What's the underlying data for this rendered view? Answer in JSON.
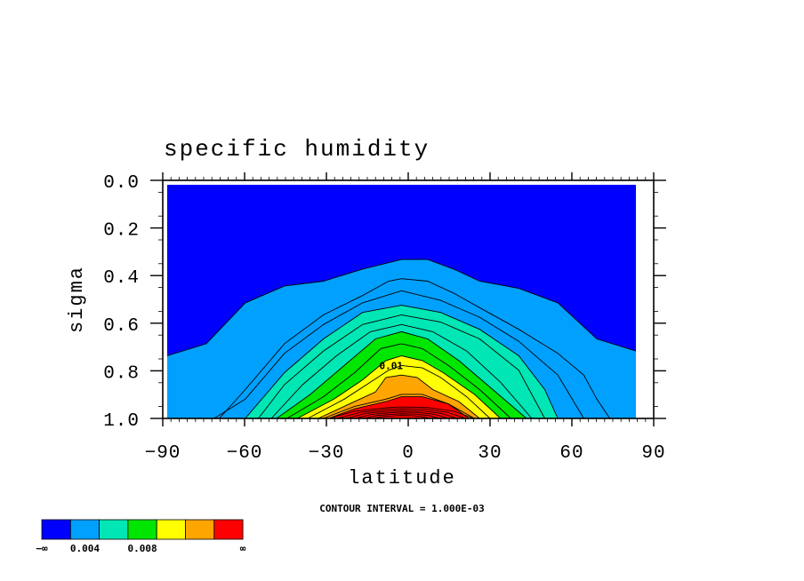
{
  "chart_data": {
    "type": "contour",
    "title": "specific humidity",
    "xlabel": "latitude",
    "ylabel": "sigma",
    "xlim": [
      -90,
      90
    ],
    "ylim": [
      1.0,
      0.0
    ],
    "x_ticks": [
      -90,
      -60,
      -30,
      0,
      30,
      60,
      90
    ],
    "x_tick_labels": [
      "−90",
      "−60",
      "−30",
      "0",
      "30",
      "60",
      "90"
    ],
    "y_ticks": [
      0.0,
      0.2,
      0.4,
      0.6,
      0.8,
      1.0
    ],
    "y_tick_labels": [
      "0.0",
      "0.2",
      "0.4",
      "0.6",
      "0.8",
      "1.0"
    ],
    "contour_note": "CONTOUR INTERVAL = 1.000E-03",
    "contour_label": "0.01",
    "colorbar": {
      "colors": [
        "#0000ff",
        "#00a0ff",
        "#00e6b4",
        "#00e600",
        "#ffff00",
        "#ffa500",
        "#ff0000"
      ],
      "labels": [
        "−∞",
        "0.004",
        "0.008",
        "∞"
      ]
    },
    "levels": [
      {
        "value": 0.002,
        "fill": "#00a0ff",
        "points": [
          [
            -90,
            0.74
          ],
          [
            -75,
            0.69
          ],
          [
            -60,
            0.52
          ],
          [
            -45,
            0.45
          ],
          [
            -30,
            0.43
          ],
          [
            -15,
            0.38
          ],
          [
            0,
            0.34
          ],
          [
            10,
            0.34
          ],
          [
            20,
            0.38
          ],
          [
            30,
            0.43
          ],
          [
            45,
            0.46
          ],
          [
            60,
            0.52
          ],
          [
            75,
            0.67
          ],
          [
            90,
            0.72
          ]
        ]
      },
      {
        "value": 0.003,
        "fill": "#00a0ff",
        "points": [
          [
            -90,
            1.0
          ],
          [
            -70,
            1.0
          ],
          [
            -60,
            0.88
          ],
          [
            -45,
            0.69
          ],
          [
            -30,
            0.57
          ],
          [
            -15,
            0.49
          ],
          [
            -5,
            0.43
          ],
          [
            0,
            0.42
          ],
          [
            10,
            0.43
          ],
          [
            20,
            0.48
          ],
          [
            30,
            0.54
          ],
          [
            45,
            0.63
          ],
          [
            60,
            0.73
          ],
          [
            70,
            0.82
          ],
          [
            75,
            0.92
          ],
          [
            80,
            1.0
          ],
          [
            90,
            1.0
          ]
        ]
      },
      {
        "value": 0.004,
        "fill": "#00a0ff",
        "points": [
          [
            -72,
            1.0
          ],
          [
            -60,
            0.92
          ],
          [
            -45,
            0.73
          ],
          [
            -30,
            0.61
          ],
          [
            -15,
            0.52
          ],
          [
            0,
            0.47
          ],
          [
            15,
            0.51
          ],
          [
            30,
            0.58
          ],
          [
            45,
            0.68
          ],
          [
            60,
            0.82
          ],
          [
            70,
            1.0
          ]
        ]
      },
      {
        "value": 0.005,
        "fill": "#00e6b4",
        "points": [
          [
            -60,
            1.0
          ],
          [
            -45,
            0.81
          ],
          [
            -30,
            0.67
          ],
          [
            -15,
            0.56
          ],
          [
            0,
            0.53
          ],
          [
            15,
            0.56
          ],
          [
            30,
            0.63
          ],
          [
            45,
            0.74
          ],
          [
            55,
            0.88
          ],
          [
            60,
            1.0
          ]
        ]
      },
      {
        "value": 0.006,
        "fill": "#00e6b4",
        "points": [
          [
            -55,
            1.0
          ],
          [
            -45,
            0.86
          ],
          [
            -30,
            0.72
          ],
          [
            -15,
            0.61
          ],
          [
            0,
            0.57
          ],
          [
            15,
            0.6
          ],
          [
            30,
            0.67
          ],
          [
            45,
            0.8
          ],
          [
            55,
            1.0
          ]
        ]
      },
      {
        "value": 0.007,
        "fill": "#00e6b4",
        "points": [
          [
            -50,
            1.0
          ],
          [
            -38,
            0.86
          ],
          [
            -25,
            0.74
          ],
          [
            -12,
            0.64
          ],
          [
            0,
            0.61
          ],
          [
            12,
            0.64
          ],
          [
            25,
            0.72
          ],
          [
            38,
            0.85
          ],
          [
            50,
            1.0
          ]
        ]
      },
      {
        "value": 0.008,
        "fill": "#00e600",
        "points": [
          [
            -48,
            1.0
          ],
          [
            -35,
            0.9
          ],
          [
            -22,
            0.78
          ],
          [
            -10,
            0.67
          ],
          [
            0,
            0.64
          ],
          [
            10,
            0.67
          ],
          [
            22,
            0.76
          ],
          [
            35,
            0.88
          ],
          [
            48,
            1.0
          ]
        ]
      },
      {
        "value": 0.009,
        "fill": "#00e600",
        "points": [
          [
            -44,
            1.0
          ],
          [
            -30,
            0.91
          ],
          [
            -18,
            0.81
          ],
          [
            -8,
            0.71
          ],
          [
            0,
            0.69
          ],
          [
            8,
            0.71
          ],
          [
            18,
            0.78
          ],
          [
            30,
            0.88
          ],
          [
            42,
            1.0
          ]
        ]
      },
      {
        "value": 0.01,
        "fill": "#ffff00",
        "points": [
          [
            -40,
            1.0
          ],
          [
            -26,
            0.92
          ],
          [
            -15,
            0.84
          ],
          [
            -6,
            0.76
          ],
          [
            0,
            0.74
          ],
          [
            8,
            0.76
          ],
          [
            16,
            0.81
          ],
          [
            28,
            0.9
          ],
          [
            38,
            1.0
          ]
        ]
      },
      {
        "value": 0.011,
        "fill": "#ffff00",
        "points": [
          [
            -36,
            1.0
          ],
          [
            -22,
            0.92
          ],
          [
            -12,
            0.85
          ],
          [
            -5,
            0.8
          ],
          [
            0,
            0.78
          ],
          [
            8,
            0.79
          ],
          [
            15,
            0.83
          ],
          [
            25,
            0.91
          ],
          [
            34,
            1.0
          ]
        ]
      },
      {
        "value": 0.012,
        "fill": "#ffa500",
        "points": [
          [
            -32,
            1.0
          ],
          [
            -20,
            0.94
          ],
          [
            -10,
            0.89
          ],
          [
            -6,
            0.83
          ],
          [
            0,
            0.82
          ],
          [
            6,
            0.83
          ],
          [
            12,
            0.88
          ],
          [
            22,
            0.93
          ],
          [
            30,
            1.0
          ]
        ]
      },
      {
        "value": 0.013,
        "fill": "#ffa500",
        "points": [
          [
            -30,
            1.0
          ],
          [
            -18,
            0.95
          ],
          [
            -6,
            0.92
          ],
          [
            0,
            0.9
          ],
          [
            8,
            0.9
          ],
          [
            18,
            0.94
          ],
          [
            28,
            1.0
          ]
        ]
      },
      {
        "value": 0.014,
        "fill": "#ff0000",
        "points": [
          [
            -28,
            1.0
          ],
          [
            -18,
            0.96
          ],
          [
            -6,
            0.93
          ],
          [
            0,
            0.91
          ],
          [
            8,
            0.91
          ],
          [
            18,
            0.94
          ],
          [
            26,
            1.0
          ]
        ]
      }
    ]
  }
}
